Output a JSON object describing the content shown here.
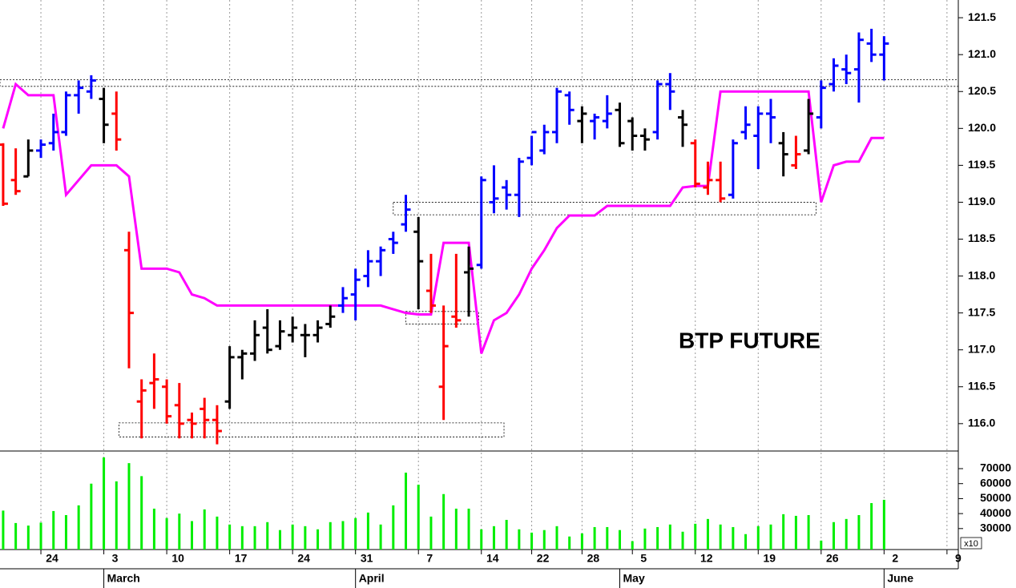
{
  "chart_data": [
    {
      "type": "ohlc",
      "annotation": "BTP FUTURE",
      "x": [
        0,
        1,
        2,
        3,
        4,
        5,
        6,
        7,
        8,
        9,
        10,
        11,
        12,
        13,
        14,
        15,
        16,
        17,
        18,
        19,
        20,
        21,
        22,
        23,
        24,
        25,
        26,
        27,
        28,
        29,
        30,
        31,
        32,
        33,
        34,
        35,
        36,
        37,
        38,
        39,
        40,
        41,
        42,
        43,
        44,
        45,
        46,
        47,
        48,
        49,
        50,
        51,
        52,
        53,
        54,
        55,
        56,
        57,
        58,
        59,
        60,
        61,
        62,
        63,
        64,
        65,
        66,
        67,
        68,
        69,
        70
      ],
      "open": [
        119.78,
        119.3,
        119.35,
        119.7,
        119.8,
        119.95,
        120.45,
        120.5,
        120.4,
        120.2,
        118.35,
        116.3,
        116.55,
        116.5,
        116.25,
        116.05,
        116.2,
        116.05,
        116.3,
        116.9,
        116.95,
        117.3,
        117.05,
        117.2,
        117.2,
        117.2,
        117.35,
        117.6,
        117.75,
        118.0,
        118.2,
        118.5,
        118.7,
        118.6,
        117.8,
        116.5,
        117.45,
        118.05,
        118.15,
        119.0,
        119.2,
        119.1,
        119.6,
        119.7,
        119.95,
        120.45,
        120.1,
        120.1,
        120.1,
        120.25,
        120.1,
        119.9,
        119.95,
        120.6,
        120.15,
        119.8,
        119.2,
        119.3,
        119.1,
        119.95,
        119.9,
        120.2,
        119.8,
        119.5,
        119.7,
        120.15,
        120.6,
        120.8,
        120.8,
        121.15,
        121.0
      ],
      "high": [
        119.8,
        119.73,
        119.85,
        119.85,
        120.2,
        120.5,
        120.65,
        120.72,
        120.55,
        120.5,
        118.6,
        116.6,
        116.95,
        116.6,
        116.55,
        116.15,
        116.35,
        116.25,
        117.05,
        117.0,
        117.4,
        117.55,
        117.4,
        117.45,
        117.35,
        117.4,
        117.6,
        117.85,
        118.1,
        118.35,
        118.4,
        118.6,
        119.1,
        118.8,
        118.3,
        117.6,
        118.3,
        118.4,
        119.35,
        119.5,
        119.3,
        119.6,
        119.9,
        120.05,
        120.55,
        120.5,
        120.3,
        120.2,
        120.45,
        120.35,
        120.15,
        120.0,
        120.65,
        120.75,
        120.25,
        119.85,
        119.55,
        119.55,
        119.85,
        120.3,
        120.3,
        120.4,
        119.95,
        119.9,
        120.4,
        120.65,
        120.95,
        121.0,
        121.3,
        121.35,
        121.25
      ],
      "low": [
        118.95,
        119.1,
        119.35,
        119.6,
        119.7,
        119.9,
        120.2,
        120.4,
        119.8,
        119.7,
        116.75,
        115.8,
        116.2,
        116.0,
        115.8,
        115.8,
        115.8,
        115.72,
        116.2,
        116.6,
        116.85,
        116.95,
        117.0,
        117.1,
        116.9,
        117.1,
        117.3,
        117.5,
        117.4,
        117.85,
        118.0,
        118.3,
        118.6,
        117.55,
        117.5,
        116.05,
        117.3,
        117.45,
        118.1,
        118.85,
        118.9,
        118.8,
        119.5,
        119.65,
        119.8,
        120.05,
        119.8,
        119.85,
        120.0,
        119.75,
        119.7,
        119.7,
        119.85,
        120.25,
        119.75,
        119.2,
        119.1,
        119.0,
        119.05,
        119.85,
        119.45,
        119.8,
        119.35,
        119.45,
        119.65,
        120.0,
        120.5,
        120.6,
        120.35,
        120.9,
        120.65
      ],
      "close": [
        118.98,
        119.15,
        119.7,
        119.78,
        119.95,
        120.45,
        120.55,
        120.65,
        120.05,
        119.85,
        117.5,
        116.45,
        116.6,
        116.1,
        116.0,
        116.0,
        116.05,
        115.9,
        116.9,
        116.95,
        117.2,
        117.0,
        117.25,
        117.3,
        117.2,
        117.3,
        117.45,
        117.7,
        117.95,
        118.2,
        118.35,
        118.45,
        118.9,
        118.2,
        117.6,
        117.05,
        117.4,
        118.1,
        119.3,
        119.05,
        119.1,
        119.55,
        119.95,
        119.95,
        120.5,
        120.25,
        120.2,
        120.15,
        120.2,
        119.8,
        119.9,
        119.85,
        120.6,
        120.5,
        120.05,
        119.25,
        119.3,
        119.05,
        119.8,
        120.05,
        120.2,
        120.15,
        119.65,
        119.65,
        120.2,
        120.55,
        120.85,
        120.75,
        121.2,
        121.0,
        121.15
      ],
      "colors": [
        "#ff0000",
        "#ff0000",
        "#000000",
        "#0000ff",
        "#0000ff",
        "#0000ff",
        "#0000ff",
        "#0000ff",
        "#000000",
        "#ff0000",
        "#ff0000",
        "#ff0000",
        "#ff0000",
        "#ff0000",
        "#ff0000",
        "#ff0000",
        "#ff0000",
        "#ff0000",
        "#000000",
        "#000000",
        "#000000",
        "#000000",
        "#000000",
        "#000000",
        "#000000",
        "#000000",
        "#000000",
        "#0000ff",
        "#0000ff",
        "#0000ff",
        "#0000ff",
        "#0000ff",
        "#0000ff",
        "#000000",
        "#ff0000",
        "#ff0000",
        "#ff0000",
        "#000000",
        "#0000ff",
        "#0000ff",
        "#0000ff",
        "#0000ff",
        "#0000ff",
        "#0000ff",
        "#0000ff",
        "#0000ff",
        "#000000",
        "#0000ff",
        "#0000ff",
        "#000000",
        "#000000",
        "#000000",
        "#0000ff",
        "#0000ff",
        "#000000",
        "#ff0000",
        "#ff0000",
        "#ff0000",
        "#0000ff",
        "#0000ff",
        "#0000ff",
        "#0000ff",
        "#000000",
        "#ff0000",
        "#000000",
        "#0000ff",
        "#0000ff",
        "#0000ff",
        "#0000ff",
        "#0000ff",
        "#0000ff"
      ],
      "line": {
        "color": "#ff00ff",
        "values": [
          120.0,
          120.6,
          120.45,
          120.45,
          120.45,
          119.1,
          119.3,
          119.5,
          119.5,
          119.5,
          119.35,
          118.1,
          118.1,
          118.1,
          118.05,
          117.75,
          117.7,
          117.6,
          117.6,
          117.6,
          117.6,
          117.6,
          117.6,
          117.6,
          117.6,
          117.6,
          117.6,
          117.6,
          117.6,
          117.6,
          117.6,
          117.55,
          117.5,
          117.48,
          117.48,
          118.45,
          118.45,
          118.45,
          116.95,
          117.4,
          117.5,
          117.75,
          118.1,
          118.35,
          118.65,
          118.82,
          118.82,
          118.82,
          118.95,
          118.95,
          118.95,
          118.95,
          118.95,
          118.95,
          119.2,
          119.22,
          119.22,
          120.5,
          120.5,
          120.5,
          120.5,
          120.5,
          120.5,
          120.5,
          120.5,
          119.0,
          119.5,
          119.55,
          119.55,
          119.87,
          119.87
        ]
      },
      "zones": [
        {
          "x": [
            -0.25,
            75.9
          ],
          "y": [
            120.57,
            120.66
          ]
        },
        {
          "x": [
            31,
            64.6
          ],
          "y": [
            118.83,
            119.0
          ]
        },
        {
          "x": [
            32,
            37.8
          ],
          "y": [
            117.35,
            117.52
          ]
        },
        {
          "x": [
            9.2,
            39.8
          ],
          "y": [
            115.82,
            116.01
          ]
        }
      ],
      "xlim": [
        -0.25,
        75.9
      ],
      "xticks": [
        {
          "value": 3,
          "label": "24"
        },
        {
          "value": 8,
          "label": "3"
        },
        {
          "value": 13,
          "label": "10"
        },
        {
          "value": 18,
          "label": "17"
        },
        {
          "value": 23,
          "label": "24"
        },
        {
          "value": 28,
          "label": "31"
        },
        {
          "value": 33,
          "label": "7"
        },
        {
          "value": 38,
          "label": "14"
        },
        {
          "value": 42,
          "label": "22"
        },
        {
          "value": 46,
          "label": "28"
        },
        {
          "value": 50,
          "label": "5"
        },
        {
          "value": 55,
          "label": "12"
        },
        {
          "value": 60,
          "label": "19"
        },
        {
          "value": 65,
          "label": "26"
        },
        {
          "value": 70,
          "label": "2"
        },
        {
          "value": 75,
          "label": "9"
        }
      ],
      "month_ticks": [
        {
          "value": 8,
          "label": "March"
        },
        {
          "value": 28,
          "label": "April"
        },
        {
          "value": 49,
          "label": "May"
        },
        {
          "value": 70,
          "label": "June"
        }
      ],
      "ylim": [
        115.64,
        121.74
      ],
      "yticks": [
        {
          "value": 116,
          "label": "116.0"
        },
        116.5,
        {
          "value": 117,
          "label": "117.0"
        },
        117.5,
        {
          "value": 118,
          "label": "118.0"
        },
        118.5,
        {
          "value": 119,
          "label": "119.0"
        },
        119.5,
        {
          "value": 120,
          "label": "120.0"
        },
        120.5,
        {
          "value": 121,
          "label": "121.0"
        },
        121.5
      ]
    },
    {
      "type": "bar",
      "values": [
        42000,
        33700,
        32000,
        34000,
        41700,
        39000,
        45500,
        60000,
        77500,
        61500,
        73700,
        65000,
        43300,
        37000,
        40000,
        35000,
        42800,
        38000,
        32700,
        31600,
        31600,
        34300,
        29000,
        32700,
        31600,
        29500,
        34300,
        35000,
        37000,
        40700,
        32700,
        45500,
        67300,
        59300,
        38000,
        53000,
        43300,
        43300,
        29500,
        31600,
        35800,
        29500,
        27300,
        29000,
        31600,
        24700,
        26800,
        31000,
        31000,
        29000,
        21600,
        30000,
        31000,
        32700,
        27900,
        33200,
        36400,
        32700,
        31000,
        26300,
        31600,
        32700,
        39600,
        38500,
        39000,
        22000,
        34300,
        36400,
        39000,
        47000,
        49200
      ],
      "color": "#00ee00",
      "unit_label": "x10",
      "ylim": [
        16000,
        80700
      ],
      "yticks": [
        30000,
        40000,
        50000,
        60000,
        70000
      ]
    }
  ]
}
